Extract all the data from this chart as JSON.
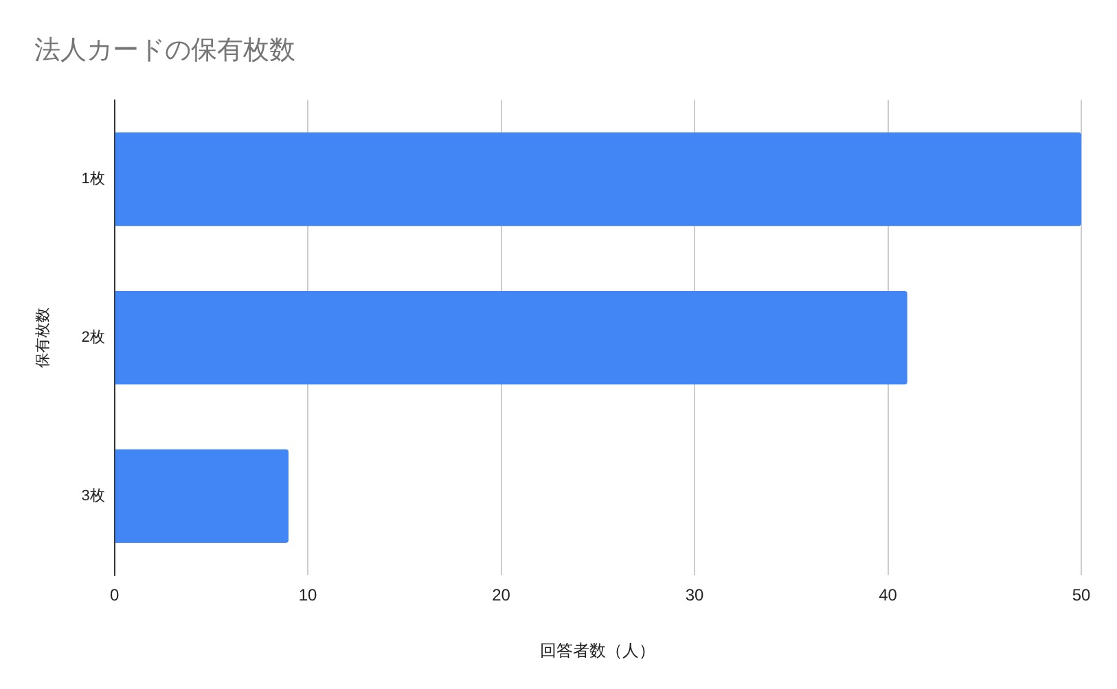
{
  "chart_data": {
    "type": "bar",
    "orientation": "horizontal",
    "title": "法人カードの保有枚数",
    "xlabel": "回答者数（人）",
    "ylabel": "保有枚数",
    "categories": [
      "1枚",
      "2枚",
      "3枚"
    ],
    "values": [
      50,
      41,
      9
    ],
    "color": "#4285f4",
    "xlim": [
      0,
      50
    ],
    "xticks": [
      0,
      10,
      20,
      30,
      40,
      50
    ],
    "grid": "x",
    "legend": false
  }
}
